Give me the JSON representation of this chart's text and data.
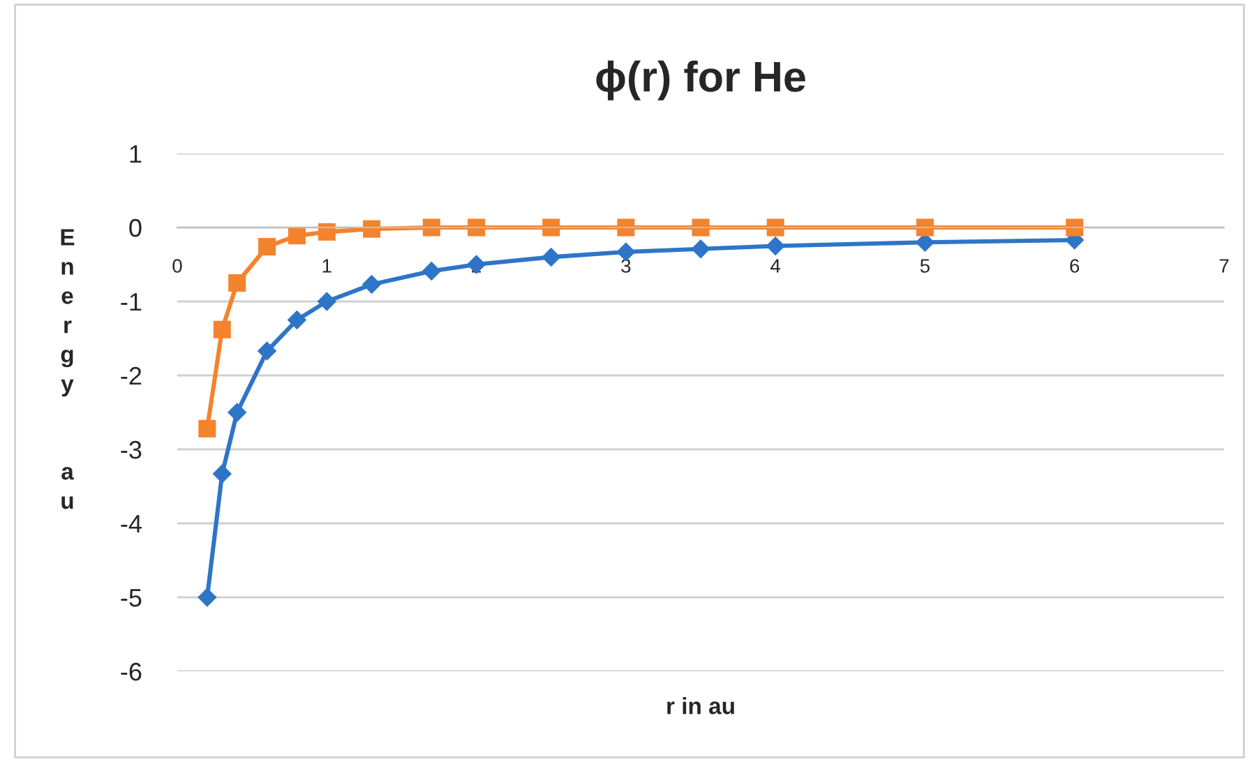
{
  "chart_data": {
    "type": "line",
    "title": "ϕ(r) for He",
    "xlabel": "r in au",
    "ylabel": "Energy  au",
    "x": [
      0.2,
      0.3,
      0.4,
      0.6,
      0.8,
      1.0,
      1.3,
      1.7,
      2.0,
      2.5,
      3.0,
      3.5,
      4.0,
      5.0,
      6.0
    ],
    "series": [
      {
        "color": "#2e75c8",
        "marker": "diamond",
        "values": [
          -5.0,
          -3.33,
          -2.5,
          -1.67,
          -1.25,
          -1.0,
          -0.77,
          -0.59,
          -0.5,
          -0.4,
          -0.33,
          -0.29,
          -0.25,
          -0.2,
          -0.17
        ]
      },
      {
        "color": "#f4832d",
        "marker": "square",
        "values": [
          -2.72,
          -1.38,
          -0.75,
          -0.26,
          -0.11,
          -0.06,
          -0.02,
          0.0,
          0.0,
          0.0,
          0.0,
          0.0,
          0.0,
          0.0,
          0.0
        ]
      }
    ],
    "xlim": [
      0,
      7
    ],
    "xticks": [
      0,
      1,
      2,
      3,
      4,
      5,
      6,
      7
    ],
    "ylim": [
      -6,
      1
    ],
    "yticks": [
      -6,
      -5,
      -4,
      -3,
      -2,
      -1,
      0,
      1
    ],
    "grid": "y",
    "line_style": "solid",
    "legend": false
  }
}
